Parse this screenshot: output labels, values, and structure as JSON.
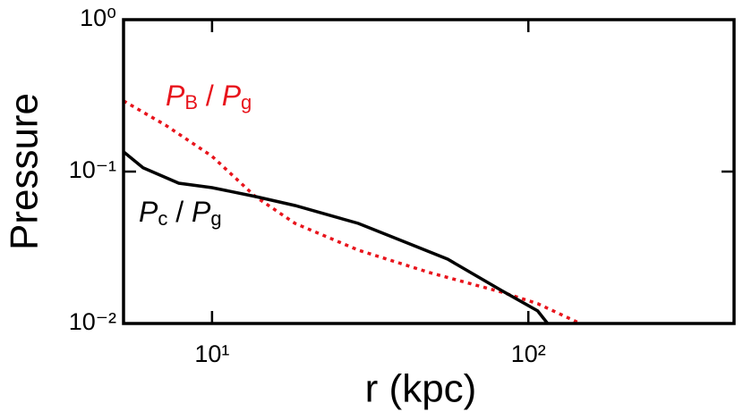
{
  "chart_data": {
    "type": "line",
    "xlabel": "r (kpc)",
    "ylabel": "Pressure",
    "xscale": "log",
    "yscale": "log",
    "xlim": [
      5.25,
      447
    ],
    "ylim": [
      0.01,
      1
    ],
    "xticks": [
      {
        "value": 10,
        "label": "10¹"
      },
      {
        "value": 100,
        "label": "10²"
      }
    ],
    "yticks": [
      {
        "value": 0.01,
        "label": "10⁻²"
      },
      {
        "value": 0.1,
        "label": "10⁻¹"
      },
      {
        "value": 1,
        "label": "10⁰"
      }
    ],
    "series": [
      {
        "name": [
          "P",
          "B",
          " / ",
          "P",
          "g"
        ],
        "color": "#e8141c",
        "dash": "dotted",
        "x": [
          5.25,
          7.13,
          10,
          13.7,
          18.3,
          29.0,
          48.8,
          82.2,
          107,
          146
        ],
        "values": [
          0.292,
          0.202,
          0.126,
          0.0685,
          0.0456,
          0.0304,
          0.0216,
          0.0161,
          0.0135,
          0.01
        ]
      },
      {
        "name": [
          "P",
          "c",
          " / ",
          "P",
          "g"
        ],
        "color": "#000000",
        "dash": "solid",
        "x": [
          5.25,
          6.05,
          7.85,
          10,
          13.7,
          18.3,
          29.0,
          40.1,
          55.6,
          82.2,
          107,
          115
        ],
        "values": [
          0.135,
          0.106,
          0.0839,
          0.0784,
          0.0685,
          0.0598,
          0.0456,
          0.0348,
          0.0265,
          0.0165,
          0.0121,
          0.01
        ]
      }
    ]
  }
}
